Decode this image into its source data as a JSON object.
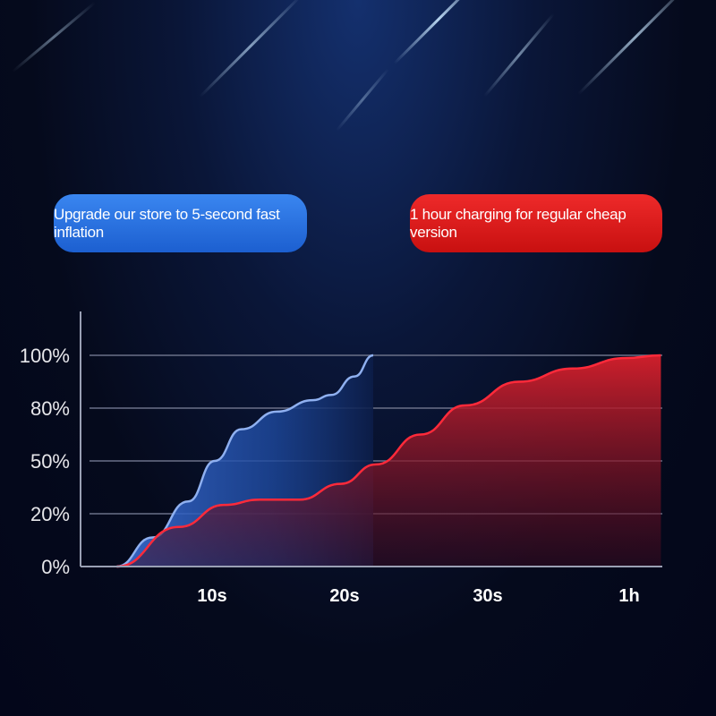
{
  "badges": {
    "fast": "Upgrade our store to 5-second fast inflation",
    "slow": "1 hour charging for regular cheap version"
  },
  "colors": {
    "fast": "#2a6fe0",
    "slow": "#e8202a",
    "background": "#050a1c"
  },
  "chart_data": {
    "type": "area",
    "title": "",
    "xlabel": "",
    "ylabel": "",
    "x_ticks": [
      "10s",
      "20s",
      "30s",
      "1h"
    ],
    "y_ticks": [
      "0%",
      "20%",
      "50%",
      "80%",
      "100%"
    ],
    "y_scale": "non-linear (ticks evenly spaced)",
    "x_units": "tick index (1 = 10s, 2 = 20s, 3 = 30s, 4 = 1h)",
    "grid": true,
    "series": [
      {
        "key": "fast",
        "x": [
          0.28,
          0.55,
          0.82,
          1.02,
          1.22,
          1.49,
          1.76,
          1.9,
          2.07,
          2.2
        ],
        "y": [
          0,
          11,
          27,
          50,
          68,
          78,
          83,
          85,
          92,
          100
        ]
      },
      {
        "key": "slow",
        "x": [
          0.28,
          0.75,
          1.09,
          1.36,
          1.66,
          1.97,
          2.22,
          2.53,
          2.84,
          3.22,
          3.6,
          3.98,
          4.23
        ],
        "y": [
          0,
          15,
          25,
          28,
          28,
          37,
          48,
          65,
          81,
          90,
          95,
          99,
          100
        ]
      }
    ]
  }
}
